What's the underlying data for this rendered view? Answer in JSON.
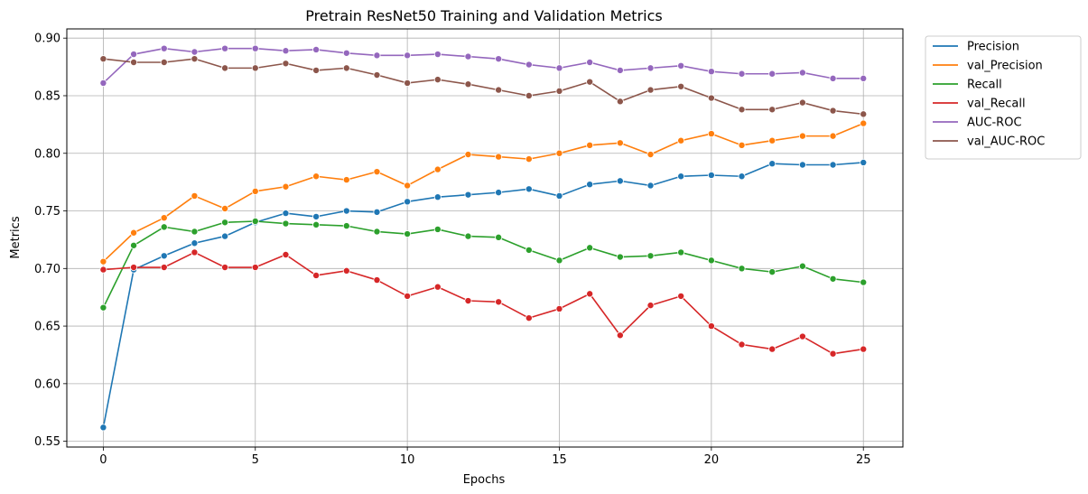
{
  "chart_data": {
    "type": "line",
    "title": "Pretrain ResNet50 Training and Validation Metrics",
    "xlabel": "Epochs",
    "ylabel": "Metrics",
    "xlim": [
      -1.2,
      26.3
    ],
    "ylim": [
      0.545,
      0.908
    ],
    "xticks": [
      0,
      5,
      10,
      15,
      20,
      25
    ],
    "yticks": [
      0.55,
      0.6,
      0.65,
      0.7,
      0.75,
      0.8,
      0.85,
      0.9
    ],
    "ytick_labels": [
      "0.55",
      "0.60",
      "0.65",
      "0.70",
      "0.75",
      "0.80",
      "0.85",
      "0.90"
    ],
    "grid": true,
    "legend_position": "outside-top-right",
    "x": [
      0,
      1,
      2,
      3,
      4,
      5,
      6,
      7,
      8,
      9,
      10,
      11,
      12,
      13,
      14,
      15,
      16,
      17,
      18,
      19,
      20,
      21,
      22,
      23,
      24,
      25
    ],
    "series": [
      {
        "name": "Precision",
        "color": "#1f77b4",
        "values": [
          0.562,
          0.699,
          0.711,
          0.722,
          0.728,
          0.74,
          0.748,
          0.745,
          0.75,
          0.749,
          0.758,
          0.762,
          0.764,
          0.766,
          0.769,
          0.763,
          0.773,
          0.776,
          0.772,
          0.78,
          0.781,
          0.78,
          0.791,
          0.79,
          0.79,
          0.792
        ]
      },
      {
        "name": "val_Precision",
        "color": "#ff7f0e",
        "values": [
          0.706,
          0.731,
          0.744,
          0.763,
          0.752,
          0.767,
          0.771,
          0.78,
          0.777,
          0.784,
          0.772,
          0.786,
          0.799,
          0.797,
          0.795,
          0.8,
          0.807,
          0.809,
          0.799,
          0.811,
          0.817,
          0.807,
          0.811,
          0.815,
          0.815,
          0.826
        ]
      },
      {
        "name": "Recall",
        "color": "#2ca02c",
        "values": [
          0.666,
          0.72,
          0.736,
          0.732,
          0.74,
          0.741,
          0.739,
          0.738,
          0.737,
          0.732,
          0.73,
          0.734,
          0.728,
          0.727,
          0.716,
          0.707,
          0.718,
          0.71,
          0.711,
          0.714,
          0.707,
          0.7,
          0.697,
          0.702,
          0.691,
          0.688
        ]
      },
      {
        "name": "val_Recall",
        "color": "#d62728",
        "values": [
          0.699,
          0.701,
          0.701,
          0.714,
          0.701,
          0.701,
          0.712,
          0.694,
          0.698,
          0.69,
          0.676,
          0.684,
          0.672,
          0.671,
          0.657,
          0.665,
          0.678,
          0.642,
          0.668,
          0.676,
          0.65,
          0.634,
          0.63,
          0.641,
          0.626,
          0.63
        ]
      },
      {
        "name": "AUC-ROC",
        "color": "#9467bd",
        "values": [
          0.861,
          0.886,
          0.891,
          0.888,
          0.891,
          0.891,
          0.889,
          0.89,
          0.887,
          0.885,
          0.885,
          0.886,
          0.884,
          0.882,
          0.877,
          0.874,
          0.879,
          0.872,
          0.874,
          0.876,
          0.871,
          0.869,
          0.869,
          0.87,
          0.865,
          0.865
        ]
      },
      {
        "name": "val_AUC-ROC",
        "color": "#8c564b",
        "values": [
          0.882,
          0.879,
          0.879,
          0.882,
          0.874,
          0.874,
          0.878,
          0.872,
          0.874,
          0.868,
          0.861,
          0.864,
          0.86,
          0.855,
          0.85,
          0.854,
          0.862,
          0.845,
          0.855,
          0.858,
          0.848,
          0.838,
          0.838,
          0.844,
          0.837,
          0.834
        ]
      }
    ]
  }
}
